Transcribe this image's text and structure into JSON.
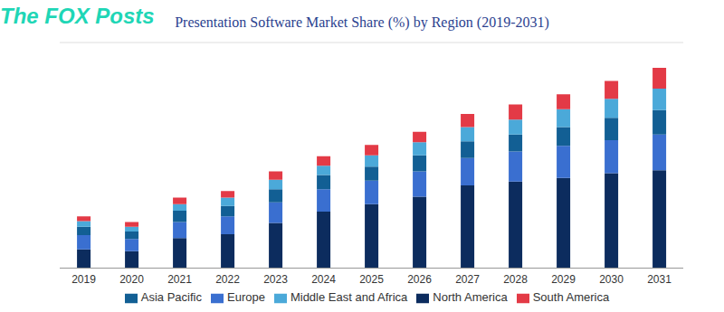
{
  "chart_data": {
    "type": "bar",
    "title": "Presentation Software Market Share (%) by Region (2019-2031)",
    "watermark": "The FOX Posts",
    "categories": [
      "2019",
      "2020",
      "2021",
      "2022",
      "2023",
      "2024",
      "2025",
      "2026",
      "2027",
      "2028",
      "2029",
      "2030",
      "2031"
    ],
    "series": [
      {
        "name": "North America",
        "color": "#0c2c5e",
        "values": [
          5,
          4.5,
          8,
          9,
          12,
          15,
          17,
          19,
          22,
          23,
          24,
          25.25,
          26
        ]
      },
      {
        "name": "Europe",
        "color": "#3a6fd0",
        "values": [
          3.75,
          3.25,
          4.25,
          4.75,
          5.5,
          6,
          6.25,
          6.75,
          7.25,
          8,
          8.5,
          8.75,
          9.5
        ]
      },
      {
        "name": "Asia Pacific",
        "color": "#125f94",
        "values": [
          2.25,
          2,
          3,
          2.75,
          3.5,
          3.75,
          3.75,
          4.25,
          4.5,
          4.5,
          5,
          6,
          6.5
        ]
      },
      {
        "name": "Middle East and Africa",
        "color": "#4ba9d9",
        "values": [
          1.5,
          1.25,
          1.75,
          2.25,
          2.5,
          2.5,
          3,
          3.5,
          3.75,
          4,
          4.75,
          5,
          5.75
        ]
      },
      {
        "name": "South America",
        "color": "#e33a46",
        "values": [
          1.25,
          1.25,
          1.75,
          1.75,
          2.25,
          2.5,
          2.75,
          2.75,
          3.5,
          4,
          4,
          4.75,
          5.5
        ]
      }
    ],
    "stacked": true,
    "ylim": [
      0,
      60
    ],
    "yticks": [
      0,
      10,
      20,
      30,
      40,
      50,
      60
    ],
    "grid": true,
    "tick_labels": "x",
    "legend": "bottom"
  }
}
